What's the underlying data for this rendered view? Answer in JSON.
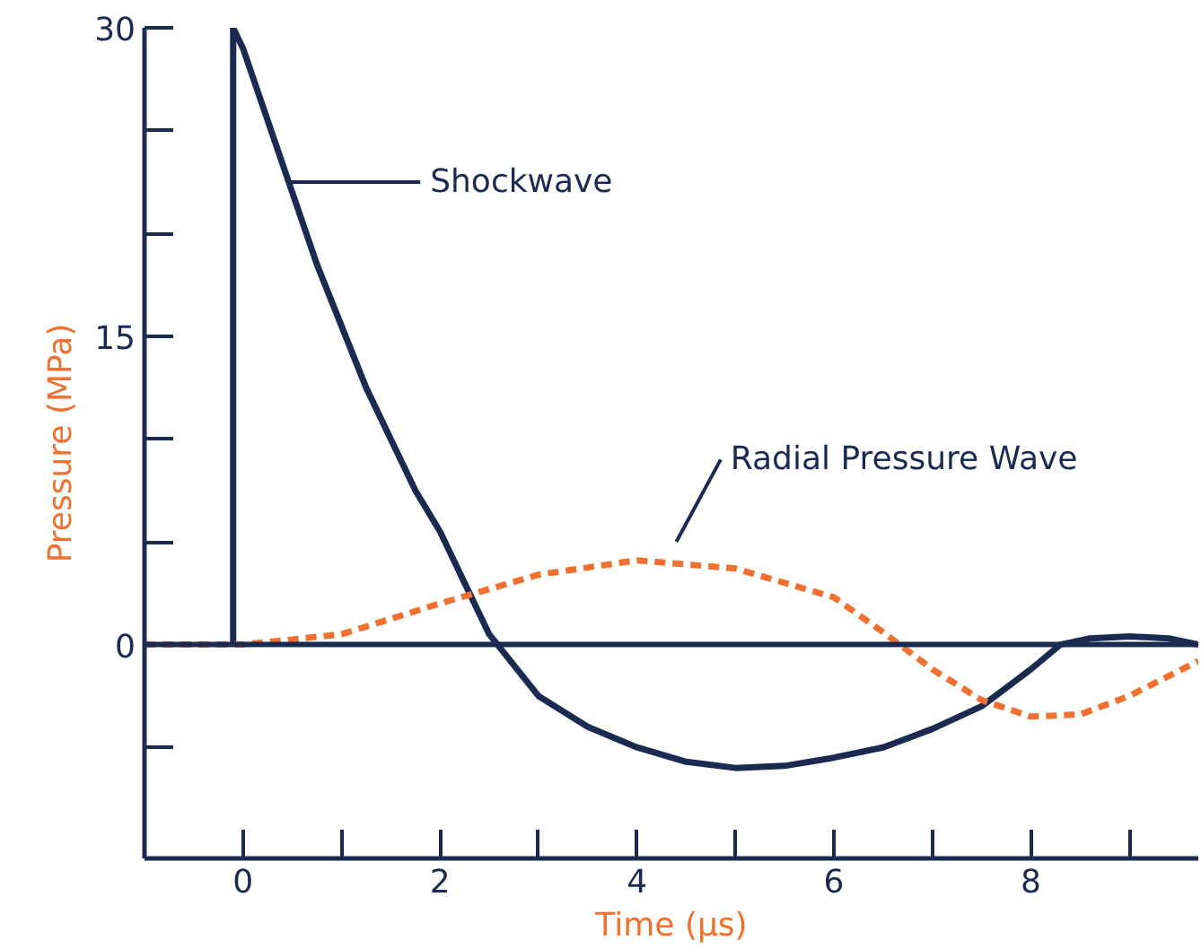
{
  "chart_data": {
    "type": "line",
    "xlabel": "Time (µs)",
    "ylabel": "Pressure (MPa)",
    "xlim": [
      -1,
      9.7
    ],
    "ylim": [
      -10.4,
      30
    ],
    "xticks": [
      {
        "value": 0,
        "label": "0"
      },
      {
        "value": 1,
        "label": null
      },
      {
        "value": 2,
        "label": "2"
      },
      {
        "value": 3,
        "label": null
      },
      {
        "value": 4,
        "label": "4"
      },
      {
        "value": 5,
        "label": null
      },
      {
        "value": 6,
        "label": "6"
      },
      {
        "value": 7,
        "label": null
      },
      {
        "value": 8,
        "label": "8"
      },
      {
        "value": 9,
        "label": null
      }
    ],
    "yticks": [
      {
        "value": -5,
        "label": null
      },
      {
        "value": 0,
        "label": "0"
      },
      {
        "value": 5,
        "label": null
      },
      {
        "value": 10,
        "label": null
      },
      {
        "value": 15,
        "label": "15"
      },
      {
        "value": 20,
        "label": null
      },
      {
        "value": 25,
        "label": null
      },
      {
        "value": 30,
        "label": "30"
      }
    ],
    "grid": false,
    "ref_lines": [
      {
        "axis": "y",
        "value": 0,
        "color": "#1b2a50"
      }
    ],
    "series": [
      {
        "color": "#1b2a50",
        "line_style": "solid",
        "x": [
          -0.1,
          -0.1,
          0,
          0.25,
          0.5,
          0.75,
          1,
          1.25,
          1.5,
          1.75,
          2,
          2.5,
          3,
          3.5,
          4,
          4.5,
          5,
          5.5,
          6,
          6.5,
          7,
          7.5,
          8,
          8.3,
          8.6,
          9,
          9.4,
          9.7
        ],
        "values": [
          0,
          30,
          29,
          25.5,
          22,
          18.5,
          15.5,
          12.5,
          10,
          7.5,
          5.5,
          0.5,
          -2.5,
          -4,
          -5,
          -5.7,
          -6,
          -5.9,
          -5.5,
          -5,
          -4.1,
          -3,
          -1.2,
          0,
          0.3,
          0.4,
          0.3,
          0
        ]
      },
      {
        "color": "#f07030",
        "line_style": "dashed",
        "x": [
          -1,
          0,
          1,
          2,
          3,
          4,
          5,
          6,
          6.5,
          7,
          7.5,
          8,
          8.5,
          9,
          9.7
        ],
        "values": [
          0,
          0,
          0.5,
          2,
          3.4,
          4.1,
          3.7,
          2.3,
          0.6,
          -1.2,
          -2.7,
          -3.5,
          -3.4,
          -2.5,
          -0.8
        ]
      }
    ],
    "annotations": [
      "Shockwave",
      "Radial Pressure Wave"
    ]
  }
}
